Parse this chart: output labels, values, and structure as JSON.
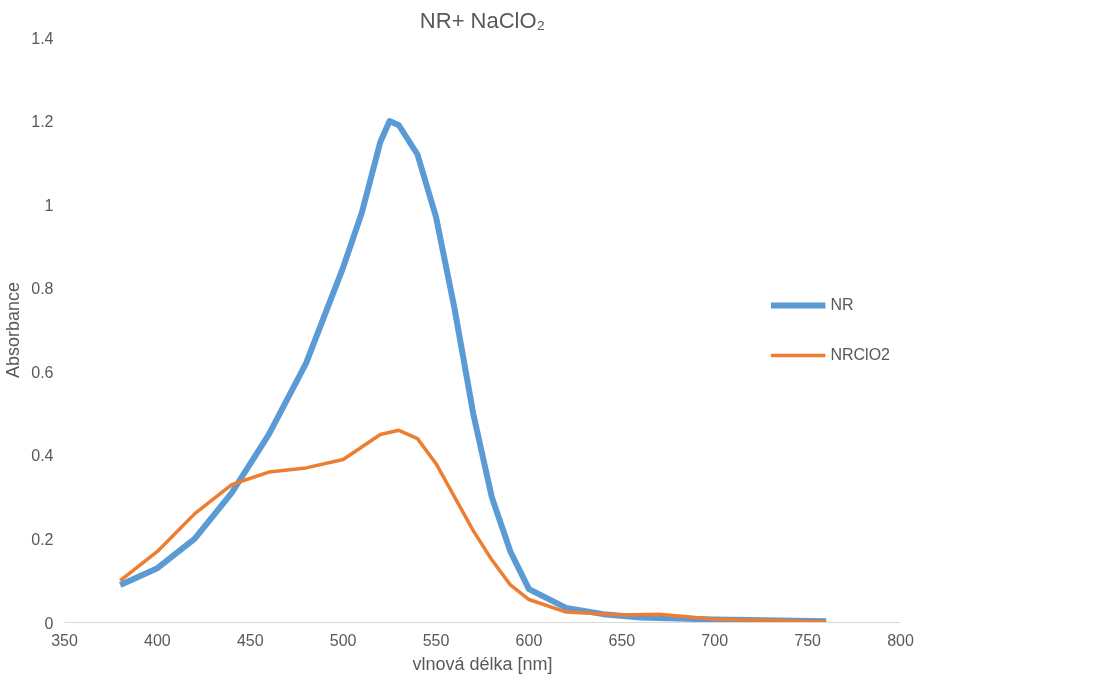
{
  "chart_data": {
    "type": "line",
    "title": "NR+ NaClO₂",
    "xlabel": "vlnová délka [nm]",
    "ylabel": "Absorbance",
    "xlim": [
      350,
      800
    ],
    "xticks": [
      350,
      400,
      450,
      500,
      550,
      600,
      650,
      700,
      750,
      800
    ],
    "ylim": [
      0,
      1.4
    ],
    "yticks": [
      0,
      0.2,
      0.4,
      0.6,
      0.8,
      1,
      1.2,
      1.4
    ],
    "grid": false,
    "legend": "right",
    "marker": "none",
    "line_style": "solid",
    "series": [
      {
        "name": "NR",
        "color": "#5b9bd5",
        "x": [
          380,
          400,
          420,
          440,
          460,
          480,
          500,
          510,
          520,
          525,
          530,
          540,
          550,
          560,
          570,
          580,
          590,
          600,
          620,
          640,
          660,
          700,
          760
        ],
        "values": [
          0.09,
          0.13,
          0.2,
          0.31,
          0.45,
          0.62,
          0.85,
          0.98,
          1.15,
          1.2,
          1.19,
          1.12,
          0.97,
          0.75,
          0.5,
          0.3,
          0.17,
          0.08,
          0.035,
          0.02,
          0.012,
          0.007,
          0.003
        ]
      },
      {
        "name": "NRClO2",
        "color": "#ed7d31",
        "x": [
          380,
          400,
          420,
          440,
          460,
          480,
          500,
          510,
          520,
          530,
          540,
          550,
          560,
          570,
          580,
          590,
          600,
          620,
          650,
          670,
          700,
          760
        ],
        "values": [
          0.1,
          0.17,
          0.26,
          0.33,
          0.36,
          0.37,
          0.39,
          0.42,
          0.45,
          0.46,
          0.44,
          0.38,
          0.3,
          0.22,
          0.15,
          0.09,
          0.055,
          0.025,
          0.018,
          0.02,
          0.008,
          0.002
        ]
      }
    ]
  }
}
